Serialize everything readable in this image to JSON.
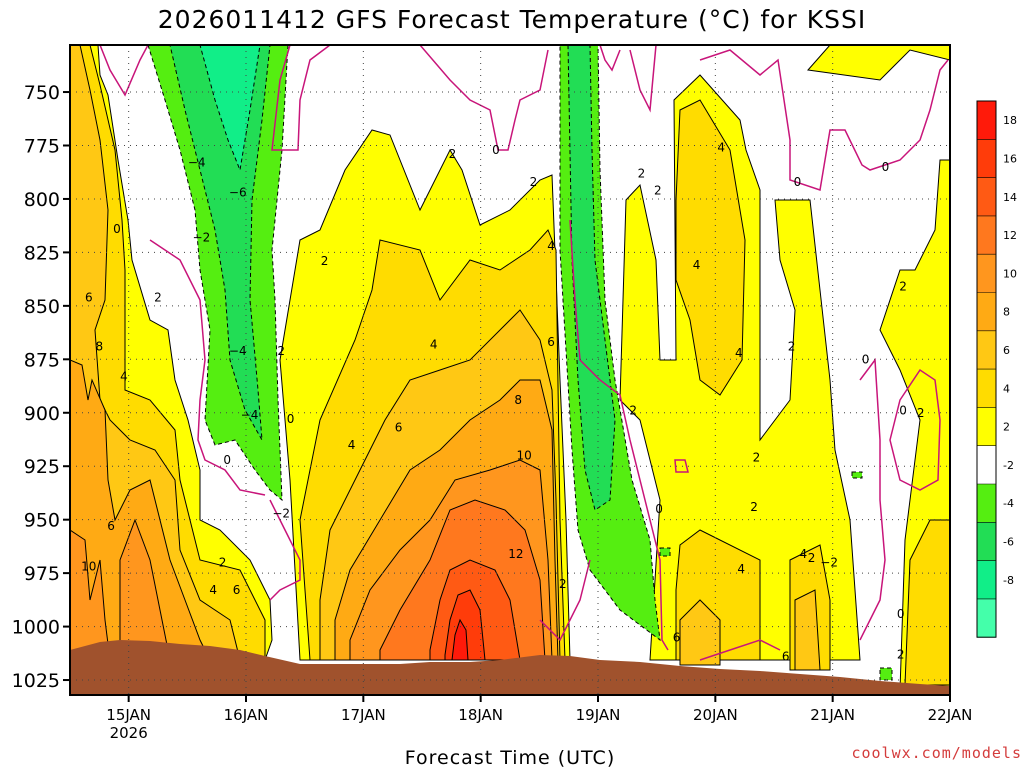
{
  "chart_data": {
    "type": "heatmap",
    "title": "2026011412 GFS Forecast Temperature (°C) for KSSI",
    "xlabel": "Forecast Time (UTC)",
    "ylabel": "",
    "x_ticks": [
      {
        "label": "15JAN",
        "sub": "2026",
        "day": 15
      },
      {
        "label": "16JAN",
        "day": 16
      },
      {
        "label": "17JAN",
        "day": 17
      },
      {
        "label": "18JAN",
        "day": 18
      },
      {
        "label": "19JAN",
        "day": 19
      },
      {
        "label": "20JAN",
        "day": 20
      },
      {
        "label": "21JAN",
        "day": 21
      },
      {
        "label": "22JAN",
        "day": 22
      }
    ],
    "x_range": [
      14.5,
      22.0
    ],
    "y_ticks": [
      "750",
      "775",
      "800",
      "825",
      "850",
      "875",
      "900",
      "925",
      "950",
      "975",
      "1000",
      "1025"
    ],
    "y_tick_values": [
      750,
      775,
      800,
      825,
      850,
      875,
      900,
      925,
      950,
      975,
      1000,
      1025
    ],
    "y_range_hPa": [
      728,
      1032
    ],
    "colorbar": {
      "levels": [
        {
          "label": "18",
          "color": "#ff1a0a"
        },
        {
          "label": "16",
          "color": "#ff3c0a"
        },
        {
          "label": "14",
          "color": "#ff5a14"
        },
        {
          "label": "12",
          "color": "#ff781e"
        },
        {
          "label": "10",
          "color": "#ff961e"
        },
        {
          "label": "8",
          "color": "#ffaa14"
        },
        {
          "label": "6",
          "color": "#ffc814"
        },
        {
          "label": "4",
          "color": "#ffdc00"
        },
        {
          "label": "2",
          "color": "#ffff00"
        },
        {
          "label": "-2",
          "color": "#ffffff"
        },
        {
          "label": "-4",
          "color": "#55ee11"
        },
        {
          "label": "-6",
          "color": "#22dd55"
        },
        {
          "label": "-8",
          "color": "#11ee88"
        },
        {
          "label": "",
          "color": "#44ffaa"
        }
      ]
    },
    "contour_labels": [
      {
        "text": "6",
        "t": 14.66,
        "p": 846
      },
      {
        "text": "8",
        "t": 14.75,
        "p": 869
      },
      {
        "text": "4",
        "t": 14.96,
        "p": 883
      },
      {
        "text": "2",
        "t": 15.25,
        "p": 846
      },
      {
        "text": "0",
        "t": 14.9,
        "p": 814
      },
      {
        "text": "−4",
        "t": 15.58,
        "p": 783
      },
      {
        "text": "−2",
        "t": 15.62,
        "p": 818
      },
      {
        "text": "−6",
        "t": 15.93,
        "p": 797
      },
      {
        "text": "−4",
        "t": 15.93,
        "p": 871
      },
      {
        "text": "−4",
        "t": 16.03,
        "p": 901
      },
      {
        "text": "0",
        "t": 16.38,
        "p": 903
      },
      {
        "text": "0",
        "t": 15.84,
        "p": 922
      },
      {
        "text": "−2",
        "t": 16.3,
        "p": 947
      },
      {
        "text": "2",
        "t": 16.3,
        "p": 871
      },
      {
        "text": "2",
        "t": 16.67,
        "p": 829
      },
      {
        "text": "4",
        "t": 16.9,
        "p": 915
      },
      {
        "text": "6",
        "t": 17.3,
        "p": 907
      },
      {
        "text": "4",
        "t": 17.6,
        "p": 868
      },
      {
        "text": "2",
        "t": 17.76,
        "p": 779
      },
      {
        "text": "0",
        "t": 18.13,
        "p": 777
      },
      {
        "text": "2",
        "t": 18.45,
        "p": 792
      },
      {
        "text": "4",
        "t": 18.6,
        "p": 822
      },
      {
        "text": "6",
        "t": 18.6,
        "p": 867
      },
      {
        "text": "8",
        "t": 18.32,
        "p": 894
      },
      {
        "text": "10",
        "t": 18.37,
        "p": 920
      },
      {
        "text": "12",
        "t": 18.3,
        "p": 966
      },
      {
        "text": "2",
        "t": 18.7,
        "p": 980
      },
      {
        "text": "2",
        "t": 19.37,
        "p": 788
      },
      {
        "text": "2",
        "t": 19.51,
        "p": 796
      },
      {
        "text": "2",
        "t": 19.3,
        "p": 899
      },
      {
        "text": "0",
        "t": 19.52,
        "p": 945
      },
      {
        "text": "4",
        "t": 19.84,
        "p": 831
      },
      {
        "text": "4",
        "t": 20.05,
        "p": 776
      },
      {
        "text": "4",
        "t": 20.2,
        "p": 872
      },
      {
        "text": "2",
        "t": 20.33,
        "p": 944
      },
      {
        "text": "2",
        "t": 20.35,
        "p": 921
      },
      {
        "text": "0",
        "t": 20.7,
        "p": 792
      },
      {
        "text": "2",
        "t": 20.65,
        "p": 869
      },
      {
        "text": "4",
        "t": 20.22,
        "p": 973
      },
      {
        "text": "4",
        "t": 20.75,
        "p": 966
      },
      {
        "text": "2",
        "t": 20.82,
        "p": 968
      },
      {
        "text": "−2",
        "t": 20.97,
        "p": 970
      },
      {
        "text": "6",
        "t": 19.67,
        "p": 1005
      },
      {
        "text": "6",
        "t": 20.6,
        "p": 1014
      },
      {
        "text": "0",
        "t": 21.45,
        "p": 785
      },
      {
        "text": "0",
        "t": 21.28,
        "p": 875
      },
      {
        "text": "2",
        "t": 21.6,
        "p": 841
      },
      {
        "text": "0",
        "t": 21.6,
        "p": 899
      },
      {
        "text": "2",
        "t": 21.75,
        "p": 900
      },
      {
        "text": "0",
        "t": 21.58,
        "p": 994
      },
      {
        "text": "2",
        "t": 21.58,
        "p": 1013
      },
      {
        "text": "6",
        "t": 14.85,
        "p": 953
      },
      {
        "text": "10",
        "t": 14.66,
        "p": 972
      },
      {
        "text": "2",
        "t": 15.8,
        "p": 970
      },
      {
        "text": "4",
        "t": 15.72,
        "p": 983
      },
      {
        "text": "6",
        "t": 15.92,
        "p": 983
      }
    ]
  },
  "credit": "coolwx.com/models"
}
